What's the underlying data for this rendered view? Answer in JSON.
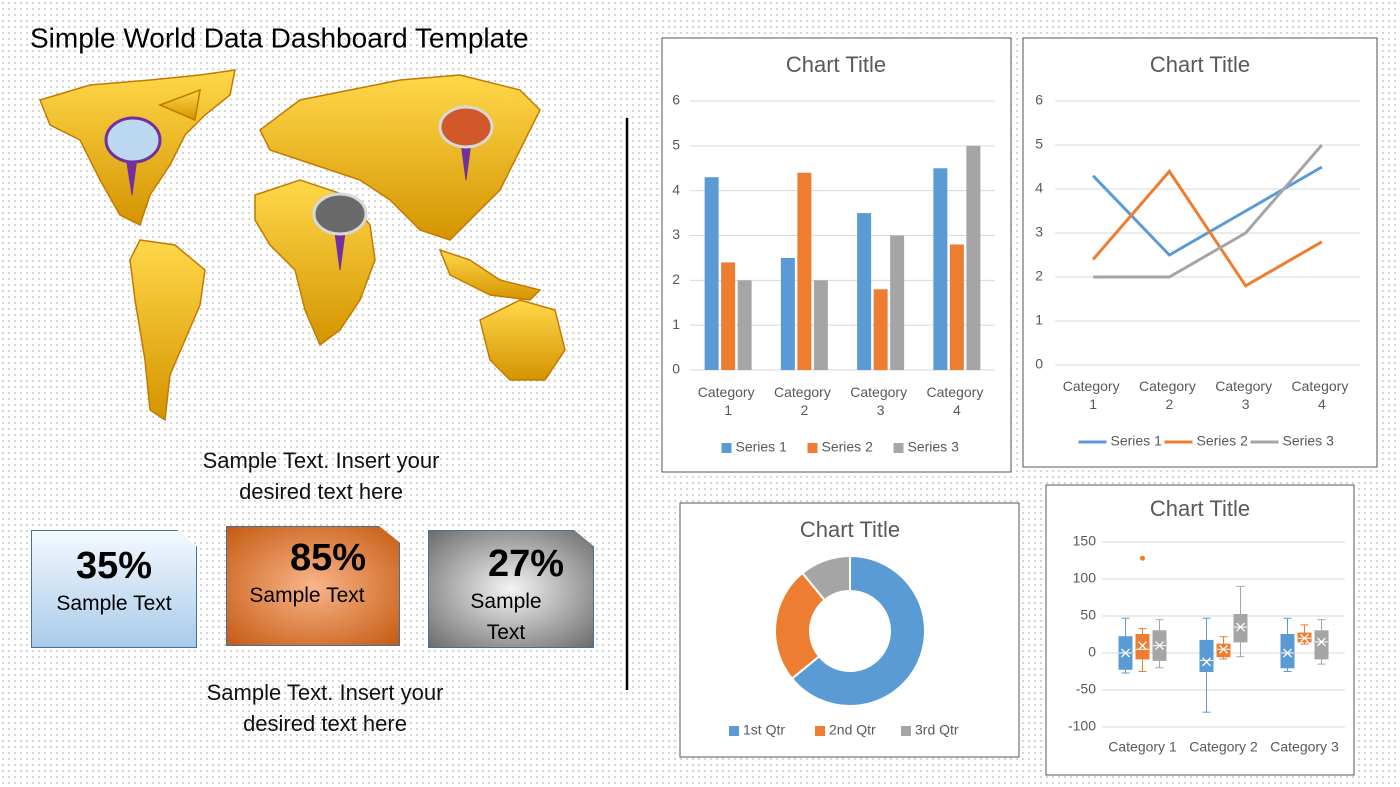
{
  "title": "Simple World Data Dashboard Template",
  "texts": [
    "Sample Text. Insert your desired text here",
    "Sample Text. Insert your desired text here"
  ],
  "kpis": [
    {
      "value": "35%",
      "label": "Sample Text"
    },
    {
      "value": "85%",
      "label": "Sample Text"
    },
    {
      "value": "27%",
      "label": "Sample Text"
    }
  ],
  "chart_data": [
    {
      "type": "bar",
      "title": "Chart Title",
      "categories": [
        "Category 1",
        "Category 2",
        "Category 3",
        "Category 4"
      ],
      "series": [
        {
          "name": "Series 1",
          "color": "#5b9bd5",
          "values": [
            4.3,
            2.5,
            3.5,
            4.5
          ]
        },
        {
          "name": "Series 2",
          "color": "#ed7d31",
          "values": [
            2.4,
            4.4,
            1.8,
            2.8
          ]
        },
        {
          "name": "Series 3",
          "color": "#a5a5a5",
          "values": [
            2,
            2,
            3,
            5
          ]
        }
      ],
      "ylim": [
        0,
        6
      ],
      "yticks": [
        0,
        1,
        2,
        3,
        4,
        5,
        6
      ],
      "grid": true,
      "legend": "bottom"
    },
    {
      "type": "line",
      "title": "Chart Title",
      "categories": [
        "Category 1",
        "Category 2",
        "Category 3",
        "Category 4"
      ],
      "series": [
        {
          "name": "Series 1",
          "color": "#5b9bd5",
          "values": [
            4.3,
            2.5,
            3.5,
            4.5
          ]
        },
        {
          "name": "Series 2",
          "color": "#ed7d31",
          "values": [
            2.4,
            4.4,
            1.8,
            2.8
          ]
        },
        {
          "name": "Series 3",
          "color": "#a5a5a5",
          "values": [
            2,
            2,
            3,
            5
          ]
        }
      ],
      "ylim": [
        0,
        6
      ],
      "yticks": [
        0,
        1,
        2,
        3,
        4,
        5,
        6
      ],
      "grid": true,
      "legend": "bottom"
    },
    {
      "type": "pie",
      "title": "Chart Title",
      "donut": true,
      "categories": [
        "1st Qtr",
        "2nd Qtr",
        "3rd Qtr"
      ],
      "values": [
        8.2,
        3.2,
        1.4
      ],
      "colors": [
        "#5b9bd5",
        "#ed7d31",
        "#a5a5a5"
      ],
      "legend": "bottom"
    },
    {
      "type": "box",
      "title": "Chart Title",
      "categories": [
        "Category 1",
        "Category 2",
        "Category 3"
      ],
      "ylim": [
        -100,
        150
      ],
      "yticks": [
        -100,
        -50,
        0,
        50,
        100,
        150
      ],
      "grid": true,
      "series": [
        {
          "color": "#5b9bd5",
          "values": [
            {
              "min": -27,
              "q1": -22,
              "median": 0,
              "q3": 22,
              "max": 47,
              "mean": 0,
              "outliers": []
            },
            {
              "min": -80,
              "q1": -25,
              "median": -10,
              "q3": 17,
              "max": 47,
              "mean": -12,
              "outliers": []
            },
            {
              "min": -25,
              "q1": -20,
              "median": 0,
              "q3": 25,
              "max": 47,
              "mean": 0,
              "outliers": []
            }
          ]
        },
        {
          "color": "#ed7d31",
          "values": [
            {
              "min": -25,
              "q1": -8,
              "median": 5,
              "q3": 25,
              "max": 33,
              "mean": 10,
              "outliers": [
                128
              ]
            },
            {
              "min": -8,
              "q1": -5,
              "median": 5,
              "q3": 12,
              "max": 22,
              "mean": 5,
              "outliers": []
            },
            {
              "min": 12,
              "q1": 15,
              "median": 20,
              "q3": 27,
              "max": 38,
              "mean": 20,
              "outliers": []
            }
          ]
        },
        {
          "color": "#a5a5a5",
          "values": [
            {
              "min": -20,
              "q1": -10,
              "median": 10,
              "q3": 30,
              "max": 45,
              "mean": 10,
              "outliers": []
            },
            {
              "min": -5,
              "q1": 15,
              "median": 35,
              "q3": 52,
              "max": 90,
              "mean": 35,
              "outliers": []
            },
            {
              "min": -15,
              "q1": -8,
              "median": 15,
              "q3": 30,
              "max": 45,
              "mean": 15,
              "outliers": []
            }
          ]
        }
      ]
    }
  ]
}
